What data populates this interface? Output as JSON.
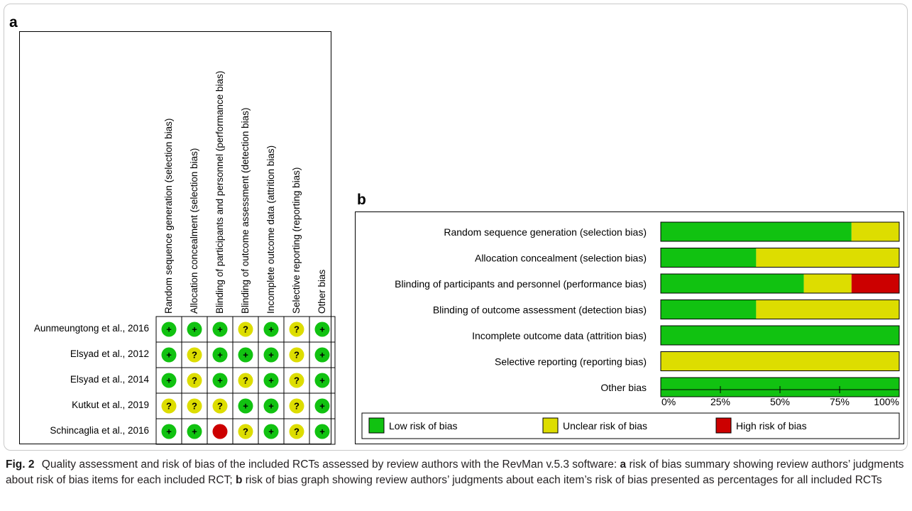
{
  "panel_a": {
    "letter": "a",
    "domains": [
      "Random sequence generation (selection bias)",
      "Allocation concealment (selection bias)",
      "Blinding of participants and personnel (performance bias)",
      "Blinding of outcome assessment (detection bias)",
      "Incomplete outcome data (attrition bias)",
      "Selective reporting (reporting bias)",
      "Other bias"
    ],
    "studies": [
      "Aunmeungtong et al., 2016",
      "Elsyad et al., 2012",
      "Elsyad et al., 2014",
      "Kutkut et al., 2019",
      "Schincaglia et al., 2016"
    ],
    "symbols": {
      "low": "+",
      "unclear": "?",
      "high": ""
    }
  },
  "panel_b": {
    "letter": "b"
  },
  "chart_data": [
    {
      "type": "table",
      "title": "",
      "columns": [
        "Random sequence generation (selection bias)",
        "Allocation concealment (selection bias)",
        "Blinding of participants and personnel (performance bias)",
        "Blinding of outcome assessment (detection bias)",
        "Incomplete outcome data (attrition bias)",
        "Selective reporting (reporting bias)",
        "Other bias"
      ],
      "rows": [
        {
          "study": "Aunmeungtong et al., 2016",
          "judgments": [
            "low",
            "low",
            "low",
            "unclear",
            "low",
            "unclear",
            "low"
          ]
        },
        {
          "study": "Elsyad et al., 2012",
          "judgments": [
            "low",
            "unclear",
            "low",
            "low",
            "low",
            "unclear",
            "low"
          ]
        },
        {
          "study": "Elsyad et al., 2014",
          "judgments": [
            "low",
            "unclear",
            "low",
            "unclear",
            "low",
            "unclear",
            "low"
          ]
        },
        {
          "study": "Kutkut et al., 2019",
          "judgments": [
            "unclear",
            "unclear",
            "unclear",
            "low",
            "low",
            "unclear",
            "low"
          ]
        },
        {
          "study": "Schincaglia et al., 2016",
          "judgments": [
            "low",
            "low",
            "high",
            "unclear",
            "low",
            "unclear",
            "low"
          ]
        }
      ]
    },
    {
      "type": "bar",
      "stacked": true,
      "orientation": "horizontal",
      "title": "",
      "xlabel": "",
      "ylabel": "",
      "categories": [
        "Random sequence generation (selection bias)",
        "Allocation concealment (selection bias)",
        "Blinding of participants and personnel (performance bias)",
        "Blinding of outcome assessment (detection bias)",
        "Incomplete outcome data (attrition bias)",
        "Selective reporting (reporting bias)",
        "Other bias"
      ],
      "series": [
        {
          "name": "Low risk of bias",
          "color": "#11c211",
          "values": [
            80,
            40,
            60,
            40,
            100,
            0,
            100
          ]
        },
        {
          "name": "Unclear risk of bias",
          "color": "#dddd00",
          "values": [
            20,
            60,
            20,
            60,
            0,
            100,
            0
          ]
        },
        {
          "name": "High risk of bias",
          "color": "#cc0000",
          "values": [
            0,
            0,
            20,
            0,
            0,
            0,
            0
          ]
        }
      ],
      "xlim": [
        0,
        100
      ],
      "xticks": [
        "0%",
        "25%",
        "50%",
        "75%",
        "100%"
      ],
      "legend_position": "bottom"
    }
  ],
  "colors": {
    "low": "#11c211",
    "unclear": "#dddd00",
    "high": "#cc0000"
  },
  "caption": {
    "fig_label": "Fig. 2",
    "t1": "Quality assessment and risk of bias of the included RCTs assessed by review authors with the RevMan v.5.3 software:",
    "a_letter": "a",
    "t2": "risk of bias summary showing review authors’ judgments about risk of bias items for each included RCT;",
    "b_letter": "b",
    "t3": "risk of bias graph showing review authors’ judgments about each item’s risk of bias presented as percentages for all included RCTs"
  }
}
